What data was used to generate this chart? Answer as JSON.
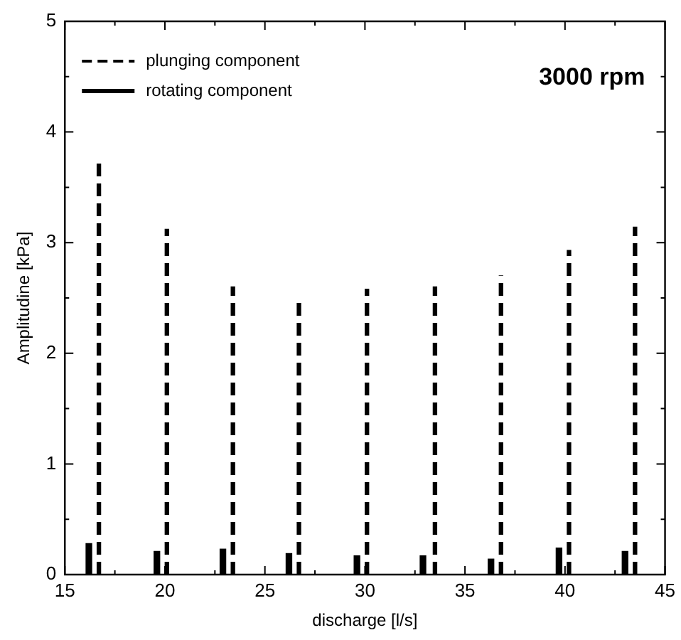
{
  "chart_data": {
    "type": "bar",
    "xlabel": "discharge [l/s]",
    "ylabel": "Amplitudine [kPa]",
    "annotations": [
      "3000 rpm"
    ],
    "xlim": [
      15,
      45
    ],
    "ylim": [
      0,
      5
    ],
    "xticks": [
      15,
      {
        "value": 17.5,
        "label": null
      },
      20,
      {
        "value": 22.5,
        "label": null
      },
      25,
      {
        "value": 27.5,
        "label": null
      },
      30,
      {
        "value": 32.5,
        "label": null
      },
      35,
      {
        "value": 37.5,
        "label": null
      },
      40,
      {
        "value": 42.5,
        "label": null
      },
      45
    ],
    "yticks": [
      0,
      {
        "value": 0.5,
        "label": null
      },
      1,
      {
        "value": 1.5,
        "label": null
      },
      2,
      {
        "value": 2.5,
        "label": null
      },
      3,
      {
        "value": 3.5,
        "label": null
      },
      4,
      {
        "value": 4.5,
        "label": null
      },
      5
    ],
    "grid": false,
    "legend": "top left",
    "series": [
      {
        "name": "plunging component",
        "color": "#000000",
        "line_style": "dashed",
        "x": [
          16.7,
          20.1,
          23.4,
          26.7,
          30.1,
          33.5,
          36.8,
          40.2,
          43.5
        ],
        "values": [
          3.73,
          3.12,
          2.6,
          2.5,
          2.58,
          2.6,
          2.7,
          2.93,
          3.14
        ]
      },
      {
        "name": "rotating component",
        "color": "#000000",
        "line_style": "solid",
        "x": [
          16.2,
          19.6,
          22.9,
          26.2,
          29.6,
          32.9,
          36.3,
          39.7,
          43.0
        ],
        "values": [
          0.28,
          0.21,
          0.23,
          0.19,
          0.17,
          0.17,
          0.14,
          0.24,
          0.21
        ]
      }
    ]
  }
}
